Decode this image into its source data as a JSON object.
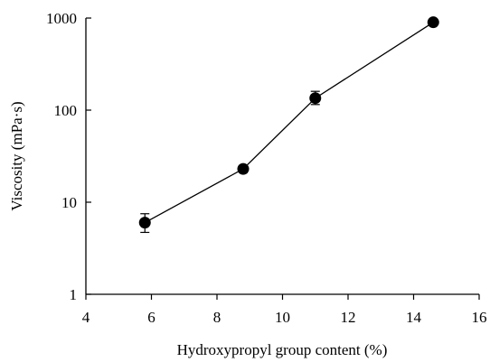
{
  "chart_data": {
    "type": "line",
    "title": "",
    "xlabel": "Hydroxypropyl group content (%)",
    "ylabel": "Viscosity (mPa·s)",
    "xlim": [
      4,
      16
    ],
    "ylim": [
      1,
      1000
    ],
    "yscale": "log",
    "grid": false,
    "legend": "none",
    "x_ticks": [
      "4",
      "6",
      "8",
      "10",
      "12",
      "14",
      "16"
    ],
    "y_ticks": [
      "1",
      "10",
      "100",
      "1000"
    ],
    "series": [
      {
        "x": [
          5.8,
          8.8,
          11.0,
          14.6
        ],
        "y": [
          6.0,
          23.0,
          135.0,
          900.0
        ],
        "err_low": [
          4.7,
          21.0,
          115.0,
          860.0
        ],
        "err_high": [
          7.5,
          25.0,
          160.0,
          940.0
        ],
        "marker": "circle",
        "color": "#000000"
      }
    ]
  }
}
